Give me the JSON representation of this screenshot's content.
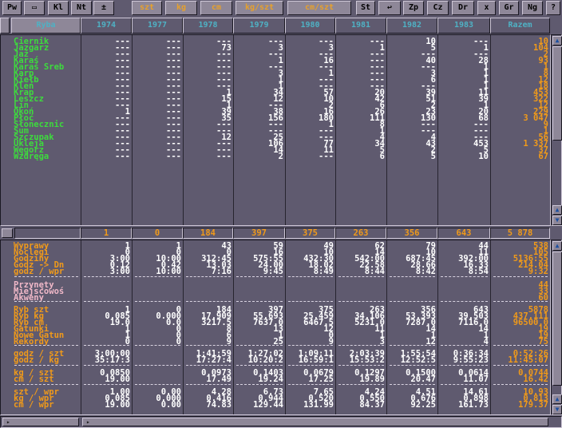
{
  "toolbar": [
    {
      "label": "Pw",
      "c": ""
    },
    {
      "label": "▭",
      "c": ""
    },
    {
      "label": "Kl",
      "c": ""
    },
    {
      "label": "Nt",
      "c": ""
    },
    {
      "label": "±",
      "c": ""
    },
    {
      "label": "szt",
      "c": "y"
    },
    {
      "label": "kg",
      "c": "y"
    },
    {
      "label": "cm",
      "c": "y"
    },
    {
      "label": "kg/szt",
      "c": "y"
    },
    {
      "label": "cm/szt",
      "c": "y"
    },
    {
      "label": "St",
      "c": ""
    },
    {
      "label": "↩",
      "c": ""
    },
    {
      "label": "Zp",
      "c": ""
    },
    {
      "label": "Cz",
      "c": ""
    },
    {
      "label": "Dr",
      "c": ""
    },
    {
      "label": "x",
      "c": ""
    },
    {
      "label": "Gr",
      "c": ""
    },
    {
      "label": "Ng",
      "c": ""
    },
    {
      "label": "?",
      "c": ""
    }
  ],
  "columns": [
    "Ryba",
    "1974",
    "1977",
    "1978",
    "1979",
    "1980",
    "1981",
    "1982",
    "1983",
    "Razem"
  ],
  "fish": [
    {
      "n": "Ciernik",
      "v": [
        "---",
        "---",
        "---",
        "---",
        "---",
        "---",
        "10",
        "---",
        "10"
      ]
    },
    {
      "n": "Jazgarz",
      "v": [
        "---",
        "---",
        "73",
        "3",
        "3",
        "1",
        "5",
        "1",
        "104"
      ]
    },
    {
      "n": "Jaź",
      "v": [
        "---",
        "---",
        "---",
        "---",
        "---",
        "---",
        "---",
        "---",
        "2"
      ]
    },
    {
      "n": "Karaś",
      "v": [
        "---",
        "---",
        "---",
        "1",
        "16",
        "---",
        "40",
        "28",
        "93"
      ]
    },
    {
      "n": "Karaś Sreb",
      "v": [
        "---",
        "---",
        "---",
        "---",
        "---",
        "---",
        "---",
        "1",
        "1"
      ]
    },
    {
      "n": "Karp",
      "v": [
        "---",
        "---",
        "---",
        "3",
        "1",
        "---",
        "3",
        "1",
        "8"
      ]
    },
    {
      "n": "Kiełb",
      "v": [
        "---",
        "---",
        "---",
        "1",
        "---",
        "---",
        "6",
        "1",
        "12"
      ]
    },
    {
      "n": "Kleń",
      "v": [
        "---",
        "---",
        "---",
        "1",
        "---",
        "---",
        "---",
        "1",
        "18"
      ]
    },
    {
      "n": "Krap",
      "v": [
        "---",
        "---",
        "1",
        "34",
        "57",
        "20",
        "39",
        "11",
        "453"
      ]
    },
    {
      "n": "Leszcz",
      "v": [
        "---",
        "---",
        "15",
        "12",
        "10",
        "42",
        "51",
        "39",
        "322"
      ]
    },
    {
      "n": "Lin",
      "v": [
        "---",
        "---",
        "1",
        "---",
        "2",
        "6",
        "2",
        "1",
        "12"
      ]
    },
    {
      "n": "Okoń",
      "v": [
        "1",
        "---",
        "39",
        "38",
        "16",
        "26",
        "23",
        "20",
        "229"
      ]
    },
    {
      "n": "Płoć",
      "v": [
        "---",
        "---",
        "35",
        "156",
        "180",
        "111",
        "130",
        "68",
        "3 047"
      ]
    },
    {
      "n": "Słonecznic",
      "v": [
        "---",
        "---",
        "---",
        "---",
        "1",
        "8",
        "---",
        "---",
        "9"
      ]
    },
    {
      "n": "Sum",
      "v": [
        "---",
        "---",
        "---",
        "---",
        "---",
        "1",
        "---",
        "---",
        "1"
      ]
    },
    {
      "n": "Szczupak",
      "v": [
        "---",
        "---",
        "12",
        "25",
        "---",
        "4",
        "4",
        "---",
        "56"
      ]
    },
    {
      "n": "Ukleja",
      "v": [
        "---",
        "---",
        "---",
        "106",
        "77",
        "34",
        "43",
        "453",
        "1 337"
      ]
    },
    {
      "n": "Węgorz",
      "v": [
        "---",
        "---",
        "---",
        "14",
        "11",
        "5",
        "2",
        "5",
        "37"
      ]
    },
    {
      "n": "Wzdręga",
      "v": [
        "---",
        "---",
        "---",
        "2",
        "---",
        "6",
        "5",
        "10",
        "67"
      ]
    }
  ],
  "totals": [
    "1",
    "0",
    "184",
    "397",
    "375",
    "263",
    "356",
    "643",
    "5 878"
  ],
  "stats": [
    {
      "n": "Wyprawy",
      "v": [
        "1",
        "1",
        "43",
        "59",
        "49",
        "62",
        "79",
        "44",
        "538"
      ]
    },
    {
      "n": "Noclegi",
      "v": [
        "0",
        "0",
        "0",
        "16",
        "10",
        "14",
        "10",
        "11",
        "105"
      ]
    },
    {
      "n": "Godziny",
      "v": [
        "3:00",
        "10:00",
        "312:45",
        "575:55",
        "432:30",
        "542:00",
        "687:45",
        "392:00",
        "5136:55"
      ]
    },
    {
      "n": "Godz -> Dn",
      "v": [
        "0.12",
        "0.42",
        "13.03",
        "24.00",
        "18.02",
        "22.58",
        "28.66",
        "16.33",
        "214.04"
      ]
    },
    {
      "n": "godz / wpr",
      "v": [
        "3:00",
        "10:00",
        "7:16",
        "9:45",
        "8:49",
        "8:44",
        "8:42",
        "8:54",
        "9:32"
      ]
    },
    {
      "n": "Przynęty",
      "v": [
        "",
        "",
        "",
        "",
        "",
        "",
        "",
        "",
        "44"
      ]
    },
    {
      "n": "Miejscowoś",
      "v": [
        "",
        "",
        "",
        "",
        "",
        "",
        "",
        "",
        "33"
      ]
    },
    {
      "n": "Akweny",
      "v": [
        "",
        "",
        "",
        "",
        "",
        "",
        "",
        "",
        "60"
      ]
    },
    {
      "n": "Ryb szt",
      "v": [
        "1",
        "0",
        "184",
        "397",
        "375",
        "263",
        "356",
        "643",
        "5878"
      ]
    },
    {
      "n": "Ryb kg",
      "v": [
        "0.085",
        "0.000",
        "17.909",
        "55.693",
        "25.459",
        "34.106",
        "53.393",
        "39.503",
        "437.111"
      ]
    },
    {
      "n": "Ryb cm",
      "v": [
        "19.0",
        "0.0",
        "3217.5",
        "7637.0",
        "6467.5",
        "5231.0",
        "7287.0",
        "7116.0",
        "96500.0"
      ]
    },
    {
      "n": "Gatunki",
      "v": [
        "1",
        "0",
        "8",
        "13",
        "12",
        "11",
        "14",
        "14",
        "19"
      ]
    },
    {
      "n": "Nowe Gatun",
      "v": [
        "1",
        "0",
        "6",
        "1",
        "0",
        "1",
        "1",
        "1",
        "19"
      ]
    },
    {
      "n": "Rekordy",
      "v": [
        "0",
        "0",
        "9",
        "25",
        "9",
        "3",
        "12",
        "4",
        "75"
      ]
    },
    {
      "n": "godz / szt",
      "v": [
        "3:00:00",
        "",
        "1:41:59",
        "1:27:02",
        "1:09:11",
        "2:03:39",
        "1:55:54",
        "0:36:34",
        "0:52:26"
      ]
    },
    {
      "n": "godz / kg",
      "v": [
        "35:17:3",
        "",
        "17:27:4",
        "10:20:2",
        "16:59:1",
        "15:53:2",
        "12:52:5",
        "9:55:23",
        "11:45:07"
      ]
    },
    {
      "n": "kg / szt",
      "v": [
        "0.0850",
        "",
        "0.0973",
        "0.1403",
        "0.0679",
        "0.1297",
        "0.1500",
        "0.0614",
        "0.0744"
      ]
    },
    {
      "n": "cm / szt",
      "v": [
        "19.00",
        "",
        "17.49",
        "19.24",
        "17.25",
        "19.89",
        "20.47",
        "11.07",
        "16.42"
      ]
    },
    {
      "n": "szt / wpr",
      "v": [
        "1.00",
        "0.00",
        "4.28",
        "6.73",
        "7.65",
        "4.24",
        "4.51",
        "14.61",
        "10.93"
      ]
    },
    {
      "n": "kg / wpr",
      "v": [
        "0.085",
        "0.000",
        "0.416",
        "0.944",
        "0.520",
        "0.550",
        "0.676",
        "0.898",
        "0.813"
      ]
    },
    {
      "n": "cm / wpr",
      "v": [
        "19.00",
        "0.00",
        "74.83",
        "129.44",
        "131.99",
        "84.37",
        "92.25",
        "161.73",
        "179.37"
      ]
    }
  ]
}
